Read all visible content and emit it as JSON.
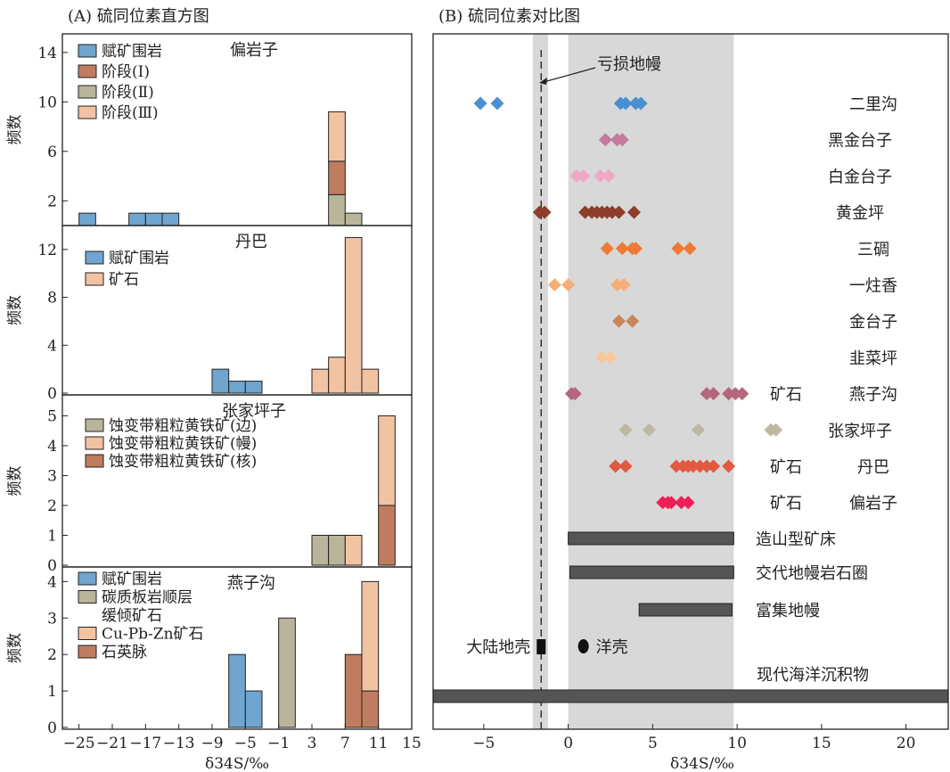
{
  "colors": {
    "host_rock": "#6fa5cf",
    "stage1": "#c07c5f",
    "stage2": "#b8b59b",
    "stage3": "#f2c3a2",
    "ore": "#f2c3a2",
    "edge": "#b8b59b",
    "mantle_zone": "#f2c3a2",
    "core": "#c07c5f",
    "carbon": "#b8b59b",
    "quartz": "#c07c5f",
    "shade": "#d8d8d8",
    "bar_dark": "#555555"
  },
  "chart_data": [
    {
      "type": "bar",
      "panel_title": "(A) 硫同位素直方图",
      "title": "偏岩子",
      "ylabel": "频数",
      "ylim": [
        0,
        15.5
      ],
      "yticks": [
        2,
        6,
        10,
        14
      ],
      "legend": [
        "赋矿围岩",
        "阶段(Ⅰ)",
        "阶段(Ⅱ)",
        "阶段(Ⅲ)"
      ],
      "series": [
        {
          "name": "赋矿围岩",
          "bins": [
            [
              -25,
              -23,
              1
            ],
            [
              -19,
              -17,
              1
            ],
            [
              -17,
              -15,
              1
            ],
            [
              -15,
              -13,
              1
            ]
          ]
        },
        {
          "name": "阶段(Ⅱ)",
          "bins": [
            [
              5,
              7,
              2.5
            ],
            [
              7,
              9,
              1
            ]
          ]
        },
        {
          "name": "阶段(Ⅰ)",
          "bins": [
            [
              5,
              7,
              2.7,
              2.5
            ]
          ]
        },
        {
          "name": "阶段(Ⅲ)",
          "bins": [
            [
              5,
              7,
              4,
              5.2
            ]
          ]
        }
      ]
    },
    {
      "type": "bar",
      "title": "丹巴",
      "ylabel": "频数",
      "ylim": [
        0,
        14
      ],
      "yticks": [
        0,
        4,
        8,
        12
      ],
      "legend": [
        "赋矿围岩",
        "矿石"
      ],
      "series": [
        {
          "name": "赋矿围岩",
          "bins": [
            [
              -9,
              -7,
              2
            ],
            [
              -7,
              -5,
              1
            ],
            [
              -5,
              -3,
              1
            ]
          ]
        },
        {
          "name": "矿石",
          "bins": [
            [
              3,
              5,
              2
            ],
            [
              5,
              7,
              3
            ],
            [
              7,
              9,
              13
            ],
            [
              9,
              11,
              2
            ]
          ]
        }
      ]
    },
    {
      "type": "bar",
      "title": "张家坪子",
      "ylabel": "频数",
      "ylim": [
        0,
        5.7
      ],
      "yticks": [
        0,
        1,
        2,
        3,
        4,
        5
      ],
      "legend": [
        "蚀变带粗粒黄铁矿(边)",
        "蚀变带粗粒黄铁矿(幔)",
        "蚀变带粗粒黄铁矿(核)"
      ],
      "series": [
        {
          "name": "蚀变带粗粒黄铁矿(边)",
          "bins": [
            [
              3,
              5,
              1
            ],
            [
              5,
              7,
              1
            ]
          ]
        },
        {
          "name": "蚀变带粗粒黄铁矿(幔)",
          "bins": [
            [
              7,
              9,
              1
            ],
            [
              11,
              13,
              3,
              2
            ]
          ]
        },
        {
          "name": "蚀变带粗粒黄铁矿(核)",
          "bins": [
            [
              11,
              13,
              2
            ]
          ]
        }
      ]
    },
    {
      "type": "bar",
      "title": "燕子沟",
      "ylabel": "频数",
      "xlabel": "δ34S/‰",
      "ylim": [
        0,
        4.4
      ],
      "yticks": [
        0,
        1,
        2,
        3,
        4
      ],
      "xlim": [
        -27,
        15
      ],
      "xticks": [
        -25,
        -21,
        -17,
        -13,
        -9,
        -5,
        -1,
        3,
        7,
        11,
        15
      ],
      "legend": [
        "赋矿围岩",
        "碳质板岩顺层",
        "缓倾矿石",
        "Cu-Pb-Zn矿石",
        "石英脉"
      ],
      "series": [
        {
          "name": "赋矿围岩",
          "bins": [
            [
              -7,
              -5,
              2
            ],
            [
              -5,
              -3,
              1
            ]
          ]
        },
        {
          "name": "碳质板岩顺层缓倾矿石",
          "bins": [
            [
              -1,
              1,
              3
            ]
          ]
        },
        {
          "name": "石英脉",
          "bins": [
            [
              7,
              9,
              2
            ],
            [
              9,
              11,
              1
            ]
          ]
        },
        {
          "name": "Cu-Pb-Zn矿石",
          "bins": [
            [
              9,
              11,
              3,
              1
            ]
          ]
        }
      ]
    },
    {
      "type": "scatter",
      "panel_title": "(B) 硫同位素对比图",
      "xlabel": "δ34S/‰",
      "xlim": [
        -8,
        22.5
      ],
      "xticks": [
        -5,
        0,
        5,
        10,
        15,
        20
      ],
      "depleted_mantle_label": "亏损地幔",
      "depleted_mantle_value": -1.6,
      "grey_band": [
        0,
        9.8
      ],
      "narrow_band": [
        -2.1,
        -1.2
      ],
      "rows": [
        {
          "label": "二里沟",
          "color": "#4a8fd0",
          "values": [
            -5.2,
            -4.2,
            3.1,
            3.4,
            4.0,
            4.3
          ]
        },
        {
          "label": "黑金台子",
          "color": "#c47a9c",
          "values": [
            2.2,
            2.9,
            3.2
          ]
        },
        {
          "label": "白金台子",
          "color": "#f2a6c6",
          "values": [
            0.5,
            0.9,
            1.9,
            2.4
          ]
        },
        {
          "label": "黄金坪",
          "color": "#8e3d2b",
          "values": [
            -1.7,
            -1.4,
            1.0,
            1.4,
            1.7,
            2.0,
            2.3,
            2.6,
            3.0,
            3.9
          ]
        },
        {
          "label": "三碉",
          "color": "#ef7a33",
          "values": [
            2.3,
            3.2,
            3.8,
            4.0,
            6.5,
            7.2
          ]
        },
        {
          "label": "一炷香",
          "color": "#f5ae78",
          "values": [
            -0.8,
            0.0,
            2.9,
            3.3
          ]
        },
        {
          "label": "金台子",
          "color": "#c8865a",
          "values": [
            3.0,
            3.8
          ]
        },
        {
          "label": "韭菜坪",
          "color": "#f5c99a",
          "values": [
            2.0,
            2.5
          ]
        },
        {
          "label": "燕子沟",
          "prefix": "矿石",
          "color": "#b4677d",
          "values": [
            0.2,
            0.4,
            8.2,
            8.6,
            9.5,
            9.9,
            10.3
          ]
        },
        {
          "label": "张家坪子",
          "color": "#bfb8a0",
          "values": [
            3.4,
            4.8,
            7.7,
            12.0,
            12.3
          ]
        },
        {
          "label": "丹巴",
          "prefix": "矿石",
          "color": "#e15a40",
          "values": [
            2.8,
            3.4,
            6.4,
            6.8,
            7.1,
            7.4,
            7.8,
            8.2,
            8.6,
            9.5
          ]
        },
        {
          "label": "偏岩子",
          "prefix": "矿石",
          "color": "#ee1f55",
          "values": [
            5.6,
            5.9,
            6.1,
            6.7,
            7.1
          ]
        }
      ],
      "range_bars": [
        {
          "label": "造山型矿床",
          "range": [
            0,
            9.8
          ]
        },
        {
          "label": "交代地幔岩石圈",
          "range": [
            0.1,
            9.8
          ]
        },
        {
          "label": "富集地幔",
          "range": [
            4.2,
            9.7
          ]
        },
        {
          "label": "现代海洋沉积物",
          "range": [
            -8,
            22.5
          ]
        }
      ],
      "point_refs": [
        {
          "label": "大陆地壳",
          "value": -1.6,
          "marker": "square"
        },
        {
          "label": "洋壳",
          "value": 0.9,
          "marker": "circle"
        }
      ]
    }
  ]
}
